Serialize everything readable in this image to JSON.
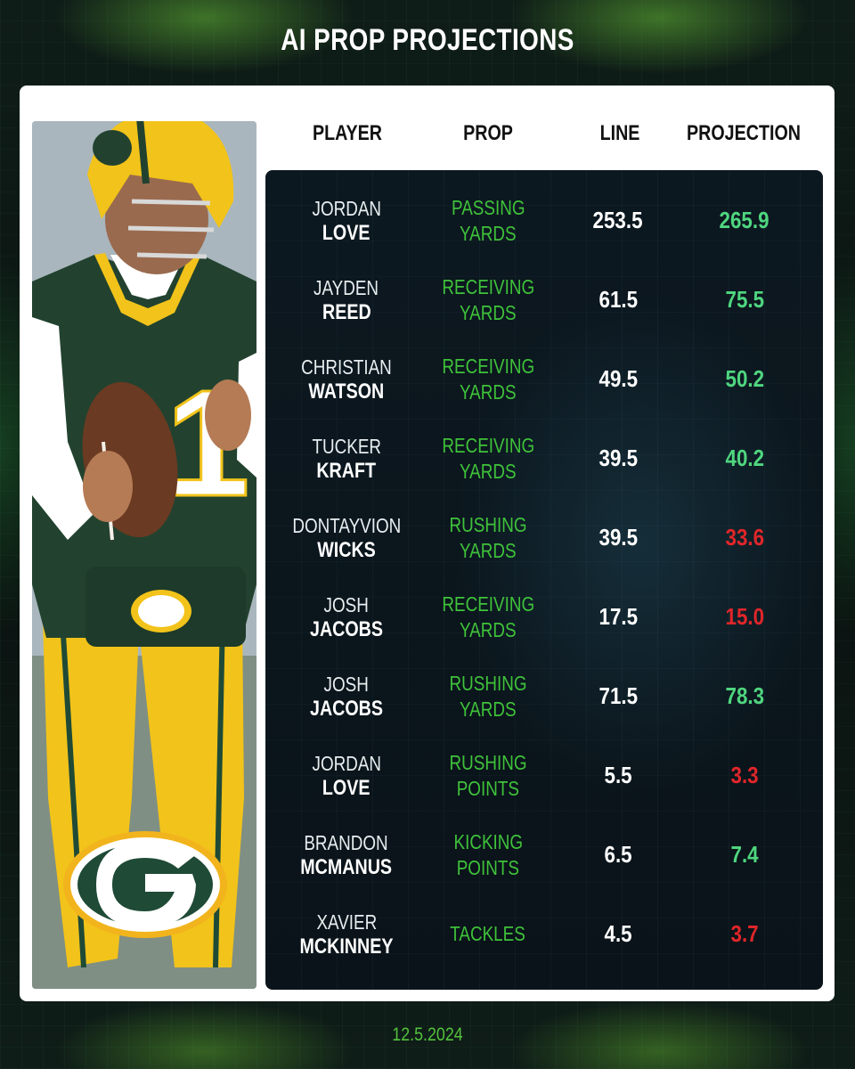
{
  "title": "AI PROP PROJECTIONS",
  "headers": {
    "player": "PLAYER",
    "prop": "PROP",
    "line": "LINE",
    "projection": "PROJECTION"
  },
  "colors": {
    "over": "#4fd67f",
    "under": "#e0262a",
    "prop": "#3fc23a",
    "team_green": "#1f4a36",
    "team_gold": "#f2b41c"
  },
  "logo_icon": "g-logo-icon",
  "rows": [
    {
      "first": "JORDAN",
      "last": "LOVE",
      "prop1": "PASSING",
      "prop2": "YARDS",
      "line": "253.5",
      "projection": "265.9",
      "result": "over"
    },
    {
      "first": "JAYDEN",
      "last": "REED",
      "prop1": "RECEIVING",
      "prop2": "YARDS",
      "line": "61.5",
      "projection": "75.5",
      "result": "over"
    },
    {
      "first": "CHRISTIAN",
      "last": "WATSON",
      "prop1": "RECEIVING",
      "prop2": "YARDS",
      "line": "49.5",
      "projection": "50.2",
      "result": "over"
    },
    {
      "first": "TUCKER",
      "last": "KRAFT",
      "prop1": "RECEIVING",
      "prop2": "YARDS",
      "line": "39.5",
      "projection": "40.2",
      "result": "over"
    },
    {
      "first": "DONTAYVION",
      "last": "WICKS",
      "prop1": "RUSHING",
      "prop2": "YARDS",
      "line": "39.5",
      "projection": "33.6",
      "result": "under"
    },
    {
      "first": "JOSH",
      "last": "JACOBS",
      "prop1": "RECEIVING",
      "prop2": "YARDS",
      "line": "17.5",
      "projection": "15.0",
      "result": "under"
    },
    {
      "first": "JOSH",
      "last": "JACOBS",
      "prop1": "RUSHING",
      "prop2": "YARDS",
      "line": "71.5",
      "projection": "78.3",
      "result": "over"
    },
    {
      "first": "JORDAN",
      "last": "LOVE",
      "prop1": "RUSHING",
      "prop2": "POINTS",
      "line": "5.5",
      "projection": "3.3",
      "result": "under"
    },
    {
      "first": "BRANDON",
      "last": "MCMANUS",
      "prop1": "KICKING",
      "prop2": "POINTS",
      "line": "6.5",
      "projection": "7.4",
      "result": "over"
    },
    {
      "first": "XAVIER",
      "last": "MCKINNEY",
      "prop1": "TACKLES",
      "prop2": "",
      "line": "4.5",
      "projection": "3.7",
      "result": "under"
    }
  ],
  "date": "12.5.2024"
}
